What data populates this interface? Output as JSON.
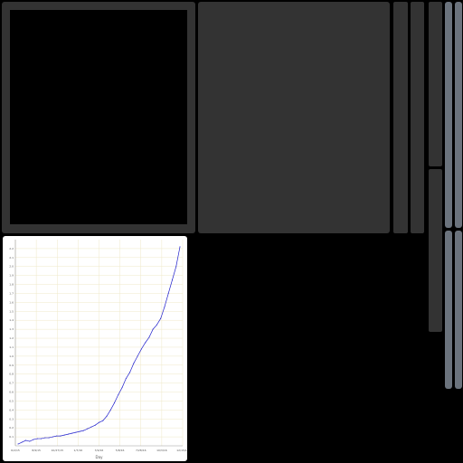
{
  "colors": {
    "background": "#000000",
    "panel": "#333333",
    "rail": "#6b737d",
    "chart_background": "#ffffff",
    "series": "#2222cc",
    "grid": "#efe8c8"
  },
  "chart_data": {
    "type": "line",
    "xlabel": "Day",
    "ylabel": "",
    "x_tick_labels": [
      "6/2/15",
      "8/9/15",
      "10/27/15",
      "1/7/16",
      "3/9/16",
      "5/8/16",
      "7/28/16",
      "10/3/16",
      "12/15/16"
    ],
    "ylim": [
      0,
      2.3
    ],
    "y_ticks": [
      0.1,
      0.2,
      0.3,
      0.4,
      0.5,
      0.6,
      0.7,
      0.8,
      0.9,
      1.0,
      1.1,
      1.2,
      1.3,
      1.4,
      1.5,
      1.6,
      1.7,
      1.8,
      1.9,
      2.0,
      2.1,
      2.2
    ],
    "grid": true,
    "series": [
      {
        "values": [
          0.02,
          0.04,
          0.06,
          0.05,
          0.07,
          0.08,
          0.08,
          0.09,
          0.09,
          0.1,
          0.11,
          0.11,
          0.12,
          0.13,
          0.14,
          0.15,
          0.16,
          0.17,
          0.19,
          0.21,
          0.23,
          0.26,
          0.28,
          0.33,
          0.4,
          0.48,
          0.57,
          0.65,
          0.75,
          0.82,
          0.92,
          1.0,
          1.08,
          1.15,
          1.21,
          1.3,
          1.35,
          1.42,
          1.55,
          1.7,
          1.85,
          2.0,
          2.22
        ]
      }
    ]
  }
}
